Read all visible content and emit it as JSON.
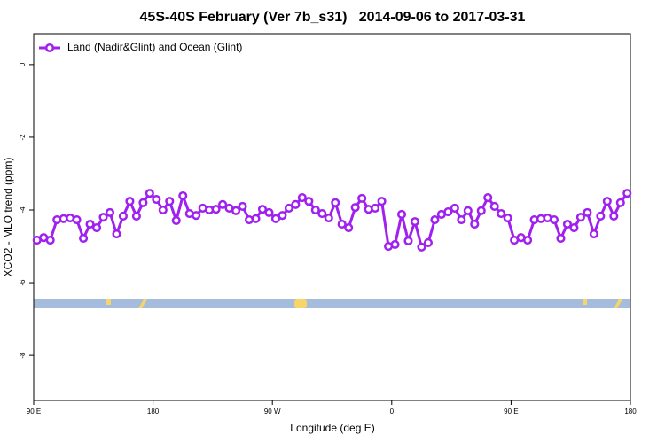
{
  "chart_data": {
    "type": "line",
    "title": "45S-40S February (Ver 7b_s31)   2014-09-06 to 2017-03-31",
    "xlabel": "Longitude (deg E)",
    "ylabel": "XCO2 - MLO trend (ppm)",
    "x": [
      92.5,
      97.5,
      102.5,
      107.5,
      112.5,
      117.5,
      122.5,
      127.5,
      132.5,
      137.5,
      142.5,
      147.5,
      152.5,
      157.5,
      162.5,
      167.5,
      172.5,
      177.5,
      182.5,
      187.5,
      192.5,
      197.5,
      202.5,
      207.5,
      212.5,
      217.5,
      222.5,
      227.5,
      232.5,
      237.5,
      242.5,
      247.5,
      252.5,
      257.5,
      262.5,
      267.5,
      272.5,
      277.5,
      282.5,
      287.5,
      292.5,
      297.5,
      302.5,
      307.5,
      312.5,
      317.5,
      322.5,
      327.5,
      332.5,
      337.5,
      342.5,
      347.5,
      352.5,
      357.5,
      362.5,
      367.5,
      372.5,
      377.5,
      382.5,
      387.5,
      392.5,
      397.5,
      402.5,
      407.5,
      412.5,
      417.5,
      422.5,
      427.5,
      432.5,
      437.5,
      442.5,
      447.5,
      452.5,
      457.5,
      462.5,
      467.5,
      472.5,
      477.5,
      482.5,
      487.5,
      492.5,
      497.5,
      502.5,
      507.5,
      512.5,
      517.5,
      522.5,
      527.5,
      532.5,
      537.5
    ],
    "series": [
      {
        "name": "Land (Nadir&Glint) and Ocean (Glint)",
        "color": "#a020f0",
        "values": [
          -4.83,
          -4.76,
          -4.83,
          -4.27,
          -4.24,
          -4.22,
          -4.27,
          -4.78,
          -4.39,
          -4.49,
          -4.2,
          -4.07,
          -4.66,
          -4.17,
          -3.76,
          -4.17,
          -3.8,
          -3.54,
          -3.71,
          -4.0,
          -3.76,
          -4.29,
          -3.61,
          -4.1,
          -4.15,
          -3.95,
          -4.0,
          -3.98,
          -3.85,
          -3.95,
          -4.02,
          -3.9,
          -4.27,
          -4.24,
          -3.98,
          -4.07,
          -4.24,
          -4.15,
          -3.95,
          -3.85,
          -3.66,
          -3.76,
          -4.0,
          -4.1,
          -4.22,
          -3.8,
          -4.39,
          -4.49,
          -3.93,
          -3.68,
          -3.98,
          -3.95,
          -3.76,
          -5.0,
          -4.95,
          -4.12,
          -4.85,
          -4.32,
          -5.02,
          -4.9,
          -4.27,
          -4.12,
          -4.05,
          -3.95,
          -4.27,
          -4.02,
          -4.39,
          -4.02,
          -3.66,
          -3.9,
          -4.1,
          -4.22,
          -4.83,
          -4.76,
          -4.83,
          -4.27,
          -4.24,
          -4.22,
          -4.27,
          -4.78,
          -4.39,
          -4.49,
          -4.2,
          -4.07,
          -4.66,
          -4.17,
          -3.76,
          -4.17,
          -3.8,
          -3.54
        ]
      }
    ],
    "xlim": [
      90,
      540
    ],
    "xticks": [
      {
        "value": 90,
        "label": "90 E"
      },
      180,
      {
        "value": 270,
        "label": "90 W"
      },
      {
        "value": 360,
        "label": "0"
      },
      {
        "value": 450,
        "label": "90 E"
      },
      {
        "value": 540,
        "label": "180"
      }
    ],
    "ylim": [
      -9.24,
      0.85
    ],
    "yticks": [
      0,
      -2,
      -4,
      -6,
      -8
    ],
    "legend": "upper left"
  }
}
